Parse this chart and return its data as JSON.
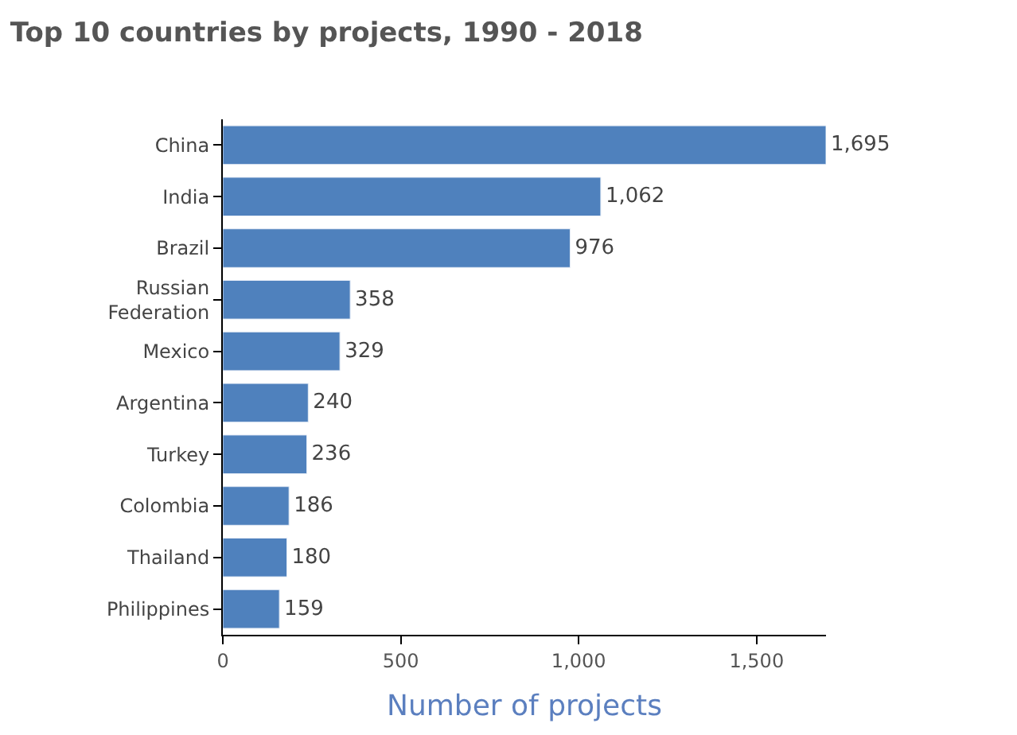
{
  "chart_data": {
    "type": "bar",
    "orientation": "horizontal",
    "title": "Top 10 countries by projects, 1990 - 2018",
    "xlabel": "Number of projects",
    "categories": [
      "China",
      "India",
      "Brazil",
      "Russian Federation",
      "Mexico",
      "Argentina",
      "Turkey",
      "Colombia",
      "Thailand",
      "Philippines"
    ],
    "values": [
      1695,
      1062,
      976,
      358,
      329,
      240,
      236,
      186,
      180,
      159
    ],
    "value_labels": [
      "1,695",
      "1,062",
      "976",
      "358",
      "329",
      "240",
      "236",
      "186",
      "180",
      "159"
    ],
    "color": "#4f81bd",
    "xlim": [
      0,
      1695
    ],
    "xticks": [
      0,
      {
        "value": 500,
        "label": "500"
      },
      {
        "value": 1000,
        "label": "1,000"
      },
      {
        "value": 1500,
        "label": "1,500"
      }
    ]
  }
}
